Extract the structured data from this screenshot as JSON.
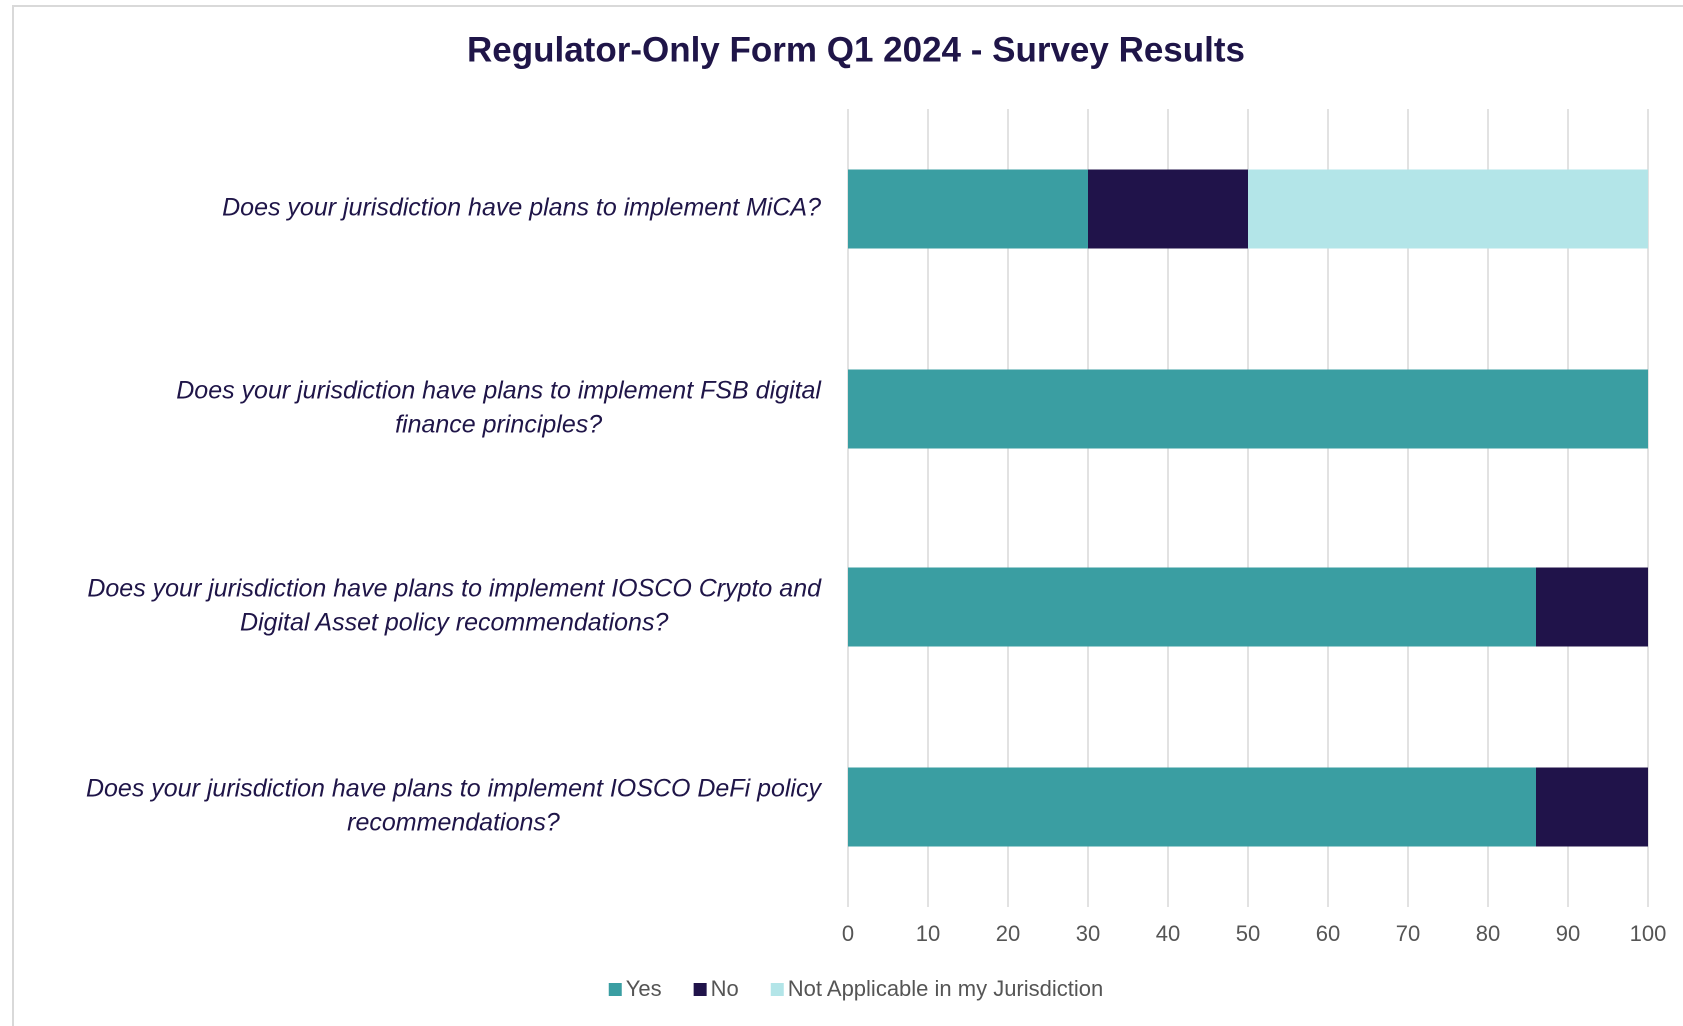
{
  "chart_data": {
    "type": "stacked_barh",
    "title": "Regulator-Only Form Q1 2024 - Survey Results",
    "categories": [
      [
        "Does your jurisdiction have plans to implement MiCA?"
      ],
      [
        "Does your jurisdiction have plans to implement FSB digital",
        "finance principles?"
      ],
      [
        "Does your jurisdiction have plans to implement IOSCO Crypto and",
        "Digital Asset policy recommendations?"
      ],
      [
        "Does your jurisdiction have plans to implement IOSCO DeFi policy",
        "recommendations?"
      ]
    ],
    "series": [
      {
        "name": "Yes",
        "color": "#3a9ea2",
        "values": [
          30,
          100,
          86,
          86
        ]
      },
      {
        "name": "No",
        "color": "#20134a",
        "values": [
          20,
          0,
          14,
          14
        ]
      },
      {
        "name": "Not Applicable in my Jurisdiction",
        "color": "#b3e5e8",
        "values": [
          50,
          0,
          0,
          0
        ]
      }
    ],
    "xlim": [
      0,
      100
    ],
    "xticks": [
      0,
      10,
      20,
      30,
      40,
      50,
      60,
      70,
      80,
      90,
      100
    ],
    "grid": true,
    "legend": "bottom"
  }
}
